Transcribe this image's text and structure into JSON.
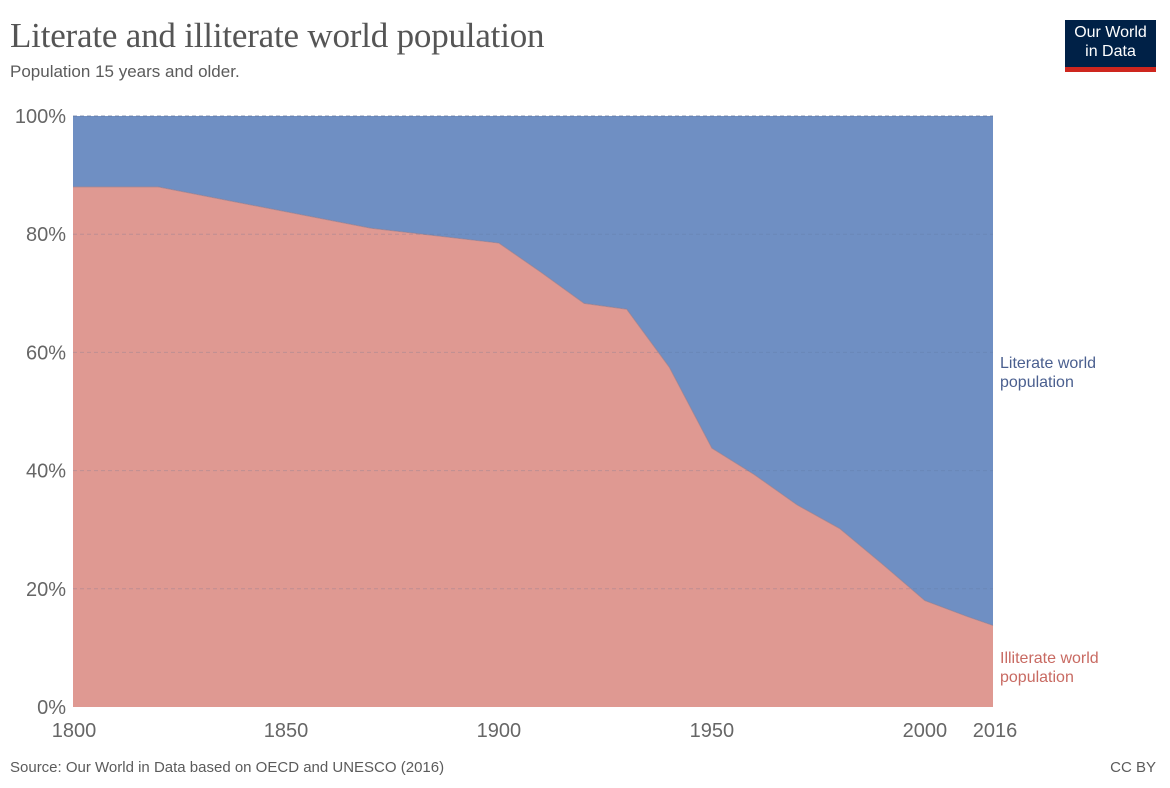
{
  "header": {
    "title": "Literate and illiterate world population",
    "subtitle": "Population 15 years and older."
  },
  "logo": {
    "line1": "Our World",
    "line2": "in Data"
  },
  "footer": {
    "source": "Source: Our World in Data based on OECD and UNESCO (2016)",
    "license": "CC BY"
  },
  "colors": {
    "literate": "#6f8fc3",
    "illiterate": "#df9992",
    "literate_label": "#4a5f8f",
    "illiterate_label": "#c86a62",
    "logo_bg": "#002147",
    "logo_bar": "#ce261e"
  },
  "chart_data": {
    "type": "area",
    "stacked": true,
    "relative": true,
    "title": "Literate and illiterate world population",
    "subtitle": "Population 15 years and older.",
    "xlabel": "",
    "ylabel": "",
    "x": [
      1800,
      1820,
      1870,
      1900,
      1910,
      1920,
      1930,
      1940,
      1950,
      1960,
      1970,
      1980,
      1990,
      2000,
      2010,
      2016
    ],
    "series": [
      {
        "name": "Illiterate world population",
        "label_lines": [
          "Illiterate world",
          "population"
        ],
        "values": [
          88,
          88,
          81,
          78.5,
          73.5,
          68.3,
          67.3,
          57.5,
          43.8,
          39.3,
          34.2,
          30.2,
          24.2,
          18,
          15.3,
          13.8
        ]
      },
      {
        "name": "Literate world population",
        "label_lines": [
          "Literate world",
          "population"
        ],
        "values": [
          12,
          12,
          19,
          21.5,
          26.5,
          31.7,
          32.7,
          42.5,
          56.2,
          60.7,
          65.8,
          69.8,
          75.8,
          82,
          84.7,
          86.2
        ]
      }
    ],
    "xlim": [
      1800,
      2016
    ],
    "ylim": [
      0,
      100
    ],
    "x_ticks": [
      1800,
      1850,
      1900,
      1950,
      2000,
      2016
    ],
    "x_tick_labels": [
      "1800",
      "1850",
      "1900",
      "1950",
      "2000",
      "2016"
    ],
    "y_ticks": [
      0,
      20,
      40,
      60,
      80,
      100
    ],
    "y_tick_labels": [
      "0%",
      "20%",
      "40%",
      "60%",
      "80%",
      "100%"
    ],
    "grid": true,
    "legend": "right"
  }
}
